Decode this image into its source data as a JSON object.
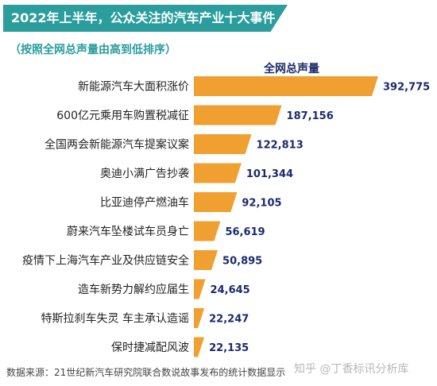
{
  "header": {
    "title": "2022年上半年，公众关注的汽车产业十大事件",
    "subtitle": "（按照全网总声量由高到低排序）"
  },
  "footer": {
    "source": "数据来源：21世纪新汽车研究院联合数说故事发布的统计数据显示",
    "watermark": "知乎 @丁香标讯分析库"
  },
  "colors": {
    "bar": "#f0a030",
    "value_text": "#1a2a6c",
    "title_bg": "#2a9d9c"
  },
  "chart_data": {
    "type": "bar",
    "orientation": "horizontal",
    "series": [
      {
        "name": "全网总声量",
        "values": [
          392775,
          187156,
          122813,
          101344,
          92105,
          56619,
          50895,
          24645,
          22247,
          22135
        ]
      }
    ],
    "categories": [
      "新能源汽车大面积涨价",
      "600亿元乘用车购置税减征",
      "全国两会新能源汽车提案议案",
      "奥迪小满广告抄袭",
      "比亚迪停产燃油车",
      "蔚来汽车坠楼试车员身亡",
      "疫情下上海汽车产业及供应链安全",
      "造车新势力解约应届生",
      "特斯拉刹车失灵 车主承认造谣",
      "保时捷减配风波"
    ],
    "value_labels": [
      "392,775",
      "187,156",
      "122,813",
      "101,344",
      "92,105",
      "56,619",
      "50,895",
      "24,645",
      "22,247",
      "22,135"
    ],
    "title": "2022年上半年，公众关注的汽车产业十大事件",
    "subtitle": "（按照全网总声量由高到低排序）",
    "xlabel": "",
    "ylabel": "",
    "legend": "top",
    "grid": false
  }
}
